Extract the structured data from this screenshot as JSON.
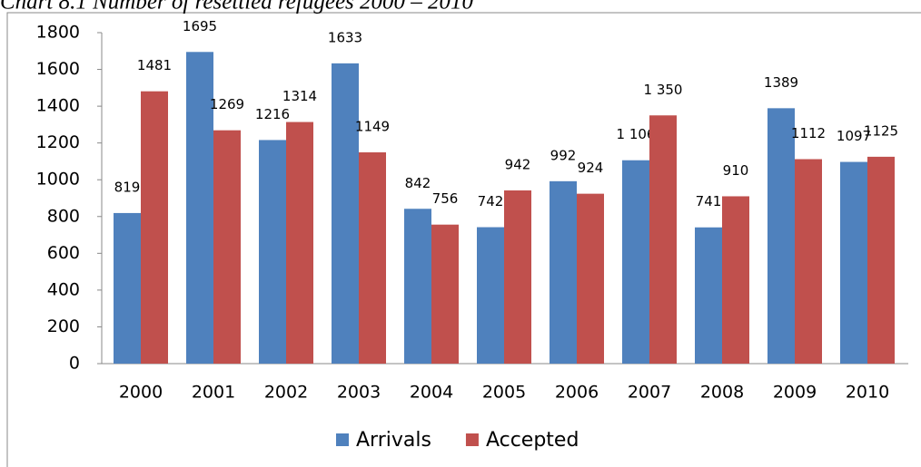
{
  "chart_data": {
    "type": "bar",
    "title": "Chart 8.1 Number of resettled refugees 2000 – 2010",
    "categories": [
      "2000",
      "2001",
      "2002",
      "2003",
      "2004",
      "2005",
      "2006",
      "2007",
      "2008",
      "2009",
      "2010"
    ],
    "series": [
      {
        "name": "Arrivals",
        "color": "#4f81bd",
        "values": [
          819,
          1695,
          1216,
          1633,
          842,
          742,
          992,
          1106,
          741,
          1389,
          1097
        ],
        "value_labels": [
          "819",
          "1695",
          "1216",
          "1633",
          "842",
          "742",
          "992",
          "1 106",
          "741",
          "1389",
          "1097"
        ]
      },
      {
        "name": "Accepted",
        "color": "#c0504d",
        "values": [
          1481,
          1269,
          1314,
          1149,
          756,
          942,
          924,
          1350,
          910,
          1112,
          1125
        ],
        "value_labels": [
          "1481",
          "1269",
          "1314",
          "1149",
          "756",
          "942",
          "924",
          "1 350",
          "910",
          "1112",
          "1125"
        ]
      }
    ],
    "ylim": [
      0,
      1800
    ],
    "yticks": [
      0,
      200,
      400,
      600,
      800,
      1000,
      1200,
      1400,
      1600,
      1800
    ],
    "legend": "bottom"
  }
}
